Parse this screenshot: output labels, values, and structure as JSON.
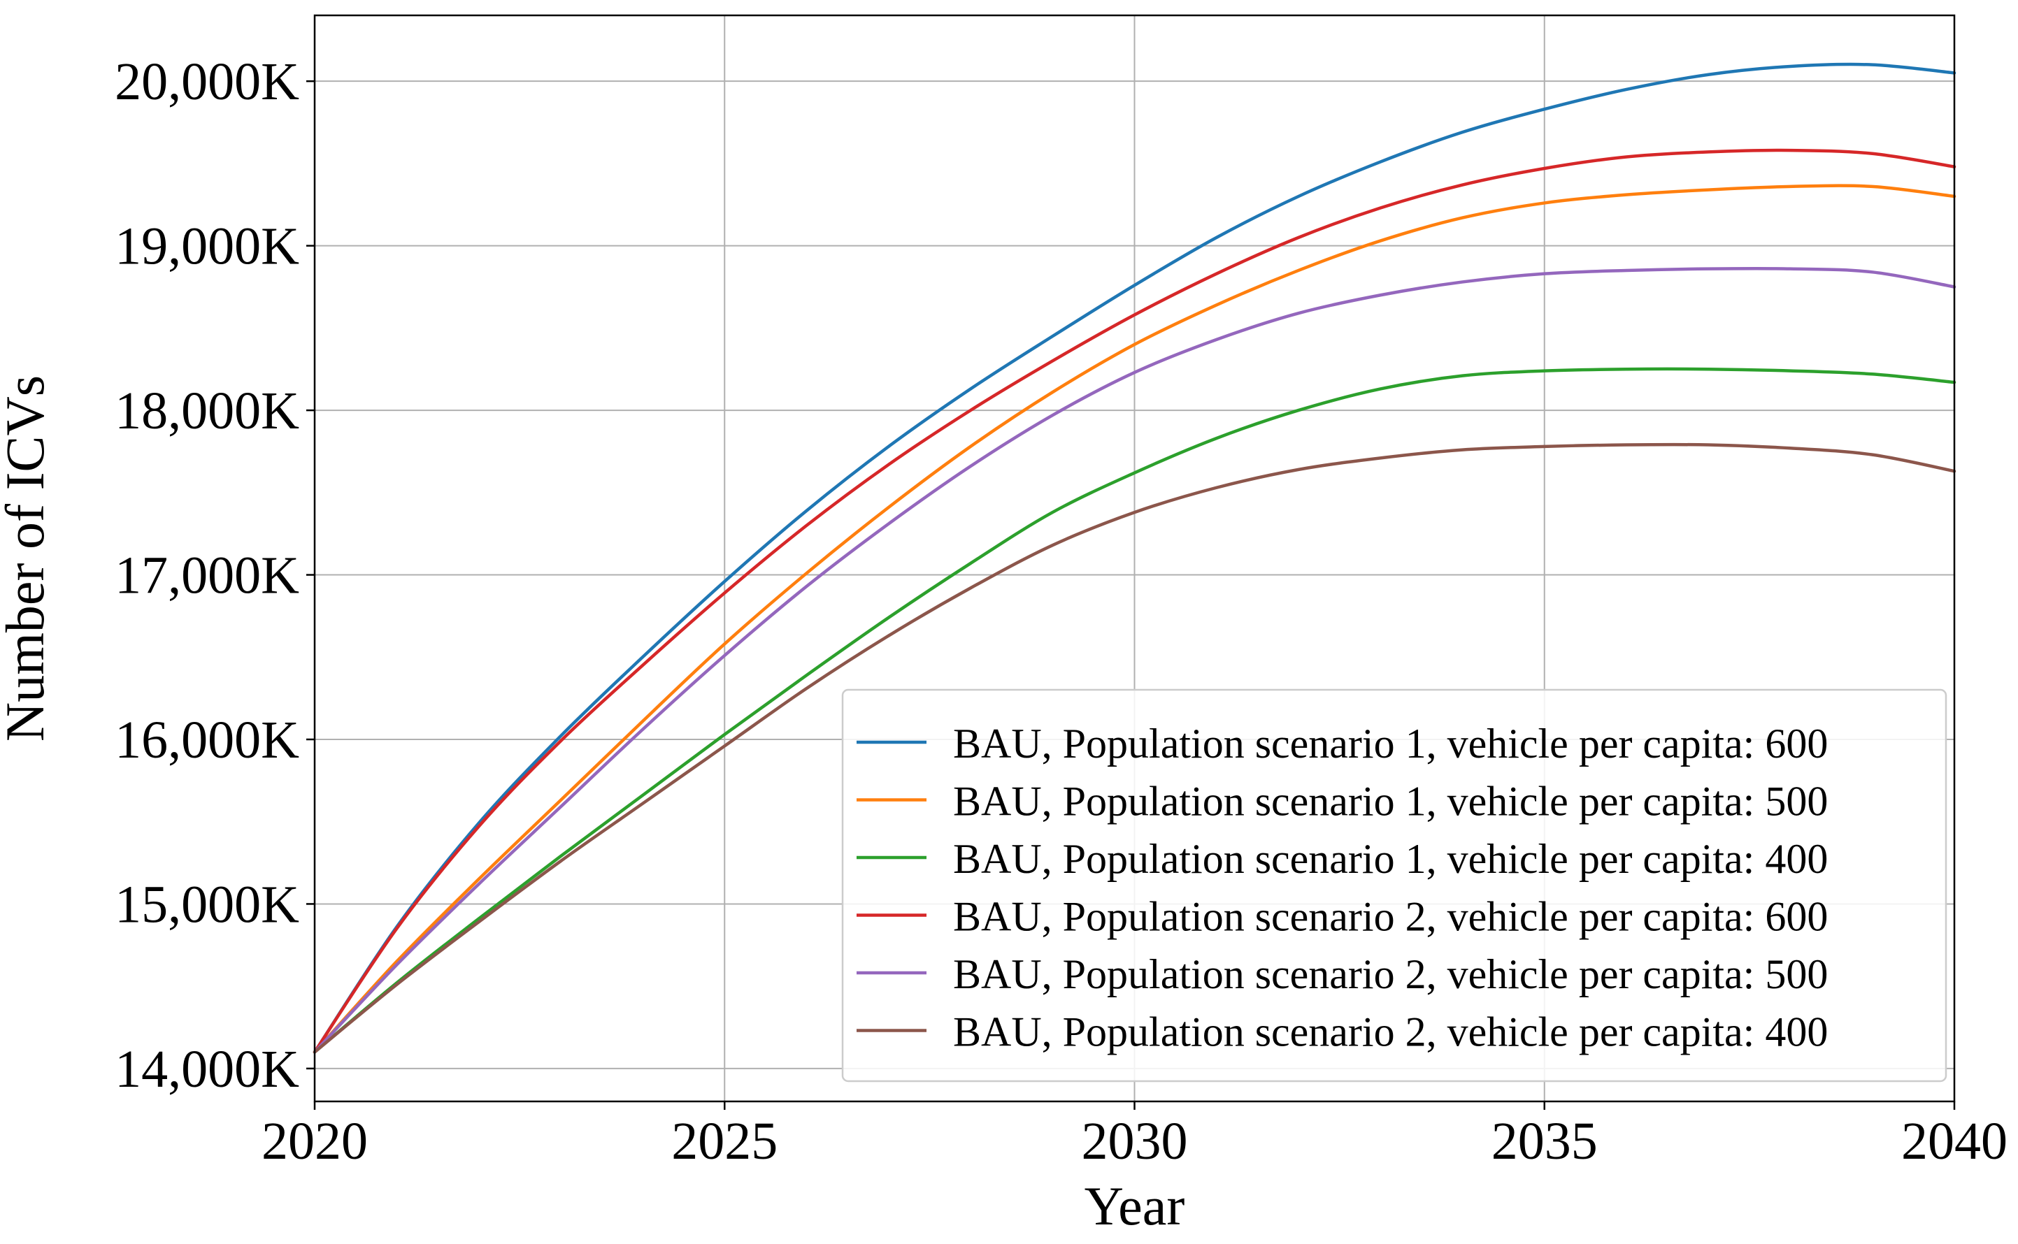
{
  "chart_data": {
    "type": "line",
    "title": "",
    "xlabel": "Year",
    "ylabel": "Number of ICVs",
    "xlim": [
      2020,
      2040
    ],
    "ylim": [
      13800,
      20400
    ],
    "grid": true,
    "legend_position": "lower-right",
    "x_ticks": [
      2020,
      2025,
      2030,
      2035,
      2040
    ],
    "x_tick_labels": [
      "2020",
      "2025",
      "2030",
      "2035",
      "2040"
    ],
    "y_ticks": [
      14000,
      15000,
      16000,
      17000,
      18000,
      19000,
      20000
    ],
    "y_tick_labels": [
      "14,000K",
      "15,000K",
      "16,000K",
      "17,000K",
      "18,000K",
      "19,000K",
      "20,000K"
    ],
    "x": [
      2020,
      2021,
      2022,
      2023,
      2024,
      2025,
      2026,
      2027,
      2028,
      2029,
      2030,
      2031,
      2032,
      2033,
      2034,
      2035,
      2036,
      2037,
      2038,
      2039,
      2040
    ],
    "series": [
      {
        "name": "BAU, Population scenario 1, vehicle per capita: 600",
        "color": "#1f77b4",
        "values": [
          14100,
          14860,
          15490,
          16020,
          16500,
          16960,
          17390,
          17780,
          18130,
          18450,
          18760,
          19050,
          19300,
          19510,
          19690,
          19830,
          19950,
          20040,
          20090,
          20100,
          20050
        ]
      },
      {
        "name": "BAU, Population scenario 1, vehicle per capita: 500",
        "color": "#ff7f0e",
        "values": [
          14100,
          14650,
          15150,
          15630,
          16110,
          16580,
          17010,
          17410,
          17780,
          18110,
          18400,
          18640,
          18850,
          19030,
          19170,
          19260,
          19310,
          19340,
          19360,
          19360,
          19300
        ]
      },
      {
        "name": "BAU, Population scenario 1, vehicle per capita: 400",
        "color": "#2ca02c",
        "values": [
          14100,
          14520,
          14910,
          15290,
          15660,
          16030,
          16390,
          16740,
          17070,
          17380,
          17620,
          17830,
          18000,
          18130,
          18210,
          18240,
          18250,
          18250,
          18240,
          18220,
          18170
        ]
      },
      {
        "name": "BAU, Population scenario 2, vehicle per capita: 600",
        "color": "#d62728",
        "values": [
          14100,
          14850,
          15470,
          15990,
          16450,
          16890,
          17300,
          17670,
          18000,
          18300,
          18580,
          18830,
          19050,
          19230,
          19370,
          19470,
          19540,
          19570,
          19580,
          19560,
          19480
        ]
      },
      {
        "name": "BAU, Population scenario 2, vehicle per capita: 500",
        "color": "#9467bd",
        "values": [
          14100,
          14630,
          15120,
          15590,
          16060,
          16510,
          16930,
          17310,
          17660,
          17970,
          18230,
          18430,
          18590,
          18700,
          18780,
          18830,
          18850,
          18860,
          18860,
          18840,
          18750
        ]
      },
      {
        "name": "BAU, Population scenario 2, vehicle per capita: 400",
        "color": "#8c564b",
        "values": [
          14100,
          14510,
          14890,
          15260,
          15610,
          15960,
          16310,
          16630,
          16920,
          17180,
          17380,
          17530,
          17640,
          17710,
          17760,
          17780,
          17790,
          17790,
          17770,
          17730,
          17630
        ]
      }
    ]
  }
}
